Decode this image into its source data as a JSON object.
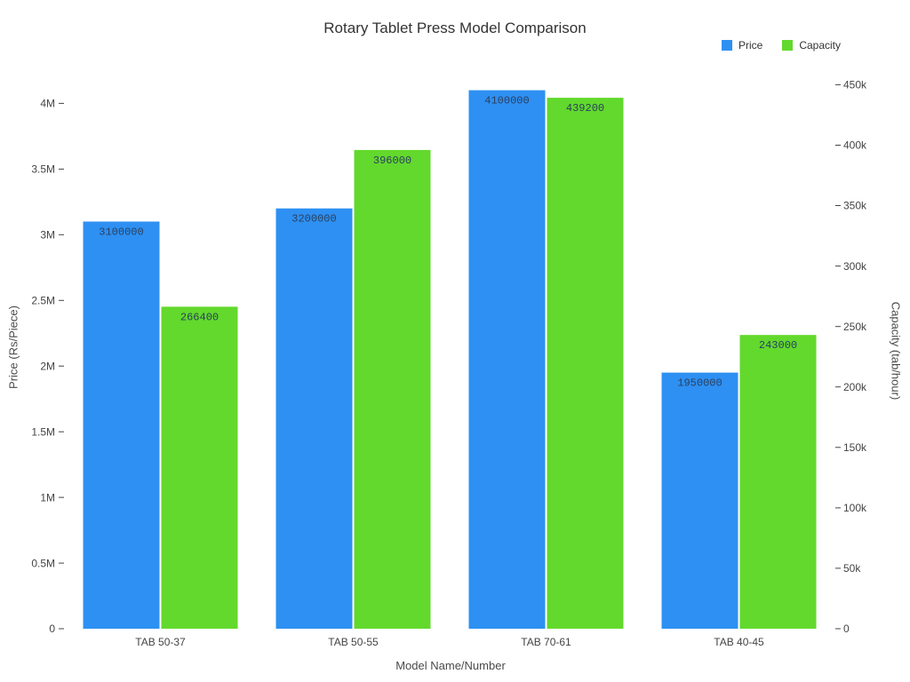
{
  "chart_data": {
    "type": "bar",
    "title": "Rotary Tablet Press Model Comparison",
    "xlabel": "Model Name/Number",
    "ylabel_left": "Price (Rs/Piece)",
    "ylabel_right": "Capacity (tab/hour)",
    "categories": [
      "TAB 50-37",
      "TAB 50-55",
      "TAB 70-61",
      "TAB 40-45"
    ],
    "series": [
      {
        "name": "Price",
        "axis": "left",
        "color": "#2E90F2",
        "values": [
          3100000,
          3200000,
          4100000,
          1950000
        ],
        "labels": [
          "3100000",
          "3200000",
          "4100000",
          "1950000"
        ]
      },
      {
        "name": "Capacity",
        "axis": "right",
        "color": "#62D92C",
        "values": [
          266400,
          396000,
          439200,
          243000
        ],
        "labels": [
          "266400",
          "396000",
          "439200",
          "243000"
        ]
      }
    ],
    "left_axis": {
      "max": 4280000,
      "ticks": [
        0,
        500000,
        1000000,
        1500000,
        2000000,
        2500000,
        3000000,
        3500000,
        4000000
      ],
      "tick_labels": [
        "0",
        "0.5M",
        "1M",
        "1.5M",
        "2M",
        "2.5M",
        "3M",
        "3.5M",
        "4M"
      ]
    },
    "right_axis": {
      "max": 465000,
      "ticks": [
        0,
        50000,
        100000,
        150000,
        200000,
        250000,
        300000,
        350000,
        400000,
        450000
      ],
      "tick_labels": [
        "0",
        "50k",
        "100k",
        "150k",
        "200k",
        "250k",
        "300k",
        "350k",
        "400k",
        "450k"
      ]
    },
    "legend": [
      "Price",
      "Capacity"
    ],
    "grid": false,
    "background_color": "#ffffff"
  }
}
